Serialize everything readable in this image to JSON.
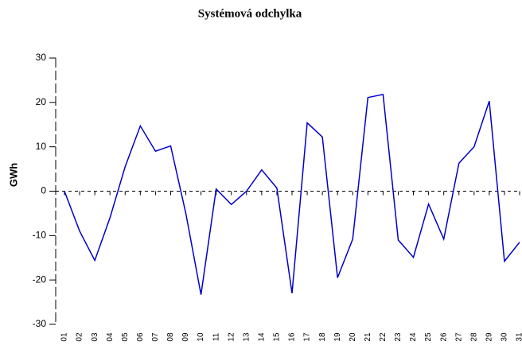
{
  "chart_data": {
    "type": "line",
    "title": "Systémová odchylka",
    "y_label": "GWh",
    "categories": [
      "01",
      "02",
      "03",
      "04",
      "05",
      "06",
      "07",
      "08",
      "09",
      "10",
      "11",
      "12",
      "13",
      "14",
      "15",
      "16",
      "17",
      "18",
      "19",
      "20",
      "21",
      "22",
      "23",
      "24",
      "25",
      "26",
      "27",
      "28",
      "29",
      "30",
      "31"
    ],
    "values": [
      0,
      -9,
      -15.6,
      -6,
      5.5,
      14.7,
      9,
      10.2,
      -5,
      -23.3,
      0.5,
      -3,
      0,
      4.8,
      0.7,
      -23,
      15.4,
      12.2,
      -19.5,
      -10.8,
      21.1,
      21.8,
      -11,
      -14.9,
      -2.9,
      -10.8,
      6.3,
      10,
      20.3,
      -15.8,
      -11.5
    ],
    "color": "#0000cc",
    "ylim": [
      -30,
      30
    ],
    "yticks": [
      -30,
      -20,
      -10,
      0,
      10,
      20,
      30
    ]
  }
}
